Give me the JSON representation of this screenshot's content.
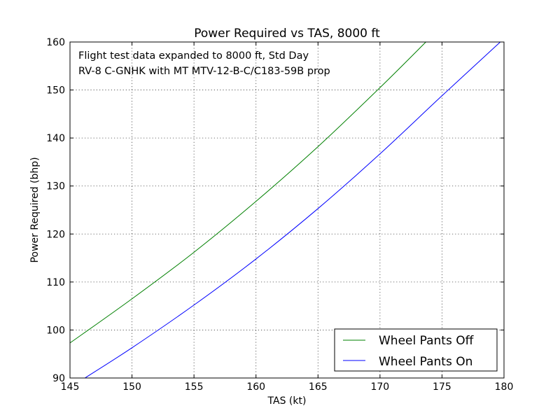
{
  "chart_data": {
    "type": "line",
    "title": "Power Required vs TAS, 8000 ft",
    "xlabel": "TAS (kt)",
    "ylabel": "Power Required (bhp)",
    "xlim": [
      145,
      180
    ],
    "ylim": [
      90,
      160
    ],
    "xticks": [
      "145",
      "150",
      "155",
      "160",
      "165",
      "170",
      "175",
      "180"
    ],
    "yticks": [
      "90",
      "100",
      "110",
      "120",
      "130",
      "140",
      "150",
      "160"
    ],
    "grid": true,
    "legend_position": "lower-right",
    "annotations": [
      "Flight test data expanded to 8000 ft, Std Day",
      "RV-8 C-GNHK with MT MTV-12-B-C/C183-59B prop"
    ],
    "series": [
      {
        "name": "Wheel Pants Off",
        "color": "#008000",
        "x": [
          145,
          150,
          155,
          160,
          165,
          170,
          173.7
        ],
        "y": [
          97.3,
          106.5,
          116.2,
          126.8,
          138.2,
          150.5,
          160
        ]
      },
      {
        "name": "Wheel Pants On",
        "color": "#0000ff",
        "x": [
          146.2,
          150,
          155,
          160,
          165,
          170,
          175,
          179.7
        ],
        "y": [
          90,
          96.3,
          105.2,
          114.8,
          125.3,
          136.7,
          148.8,
          160
        ]
      }
    ]
  }
}
